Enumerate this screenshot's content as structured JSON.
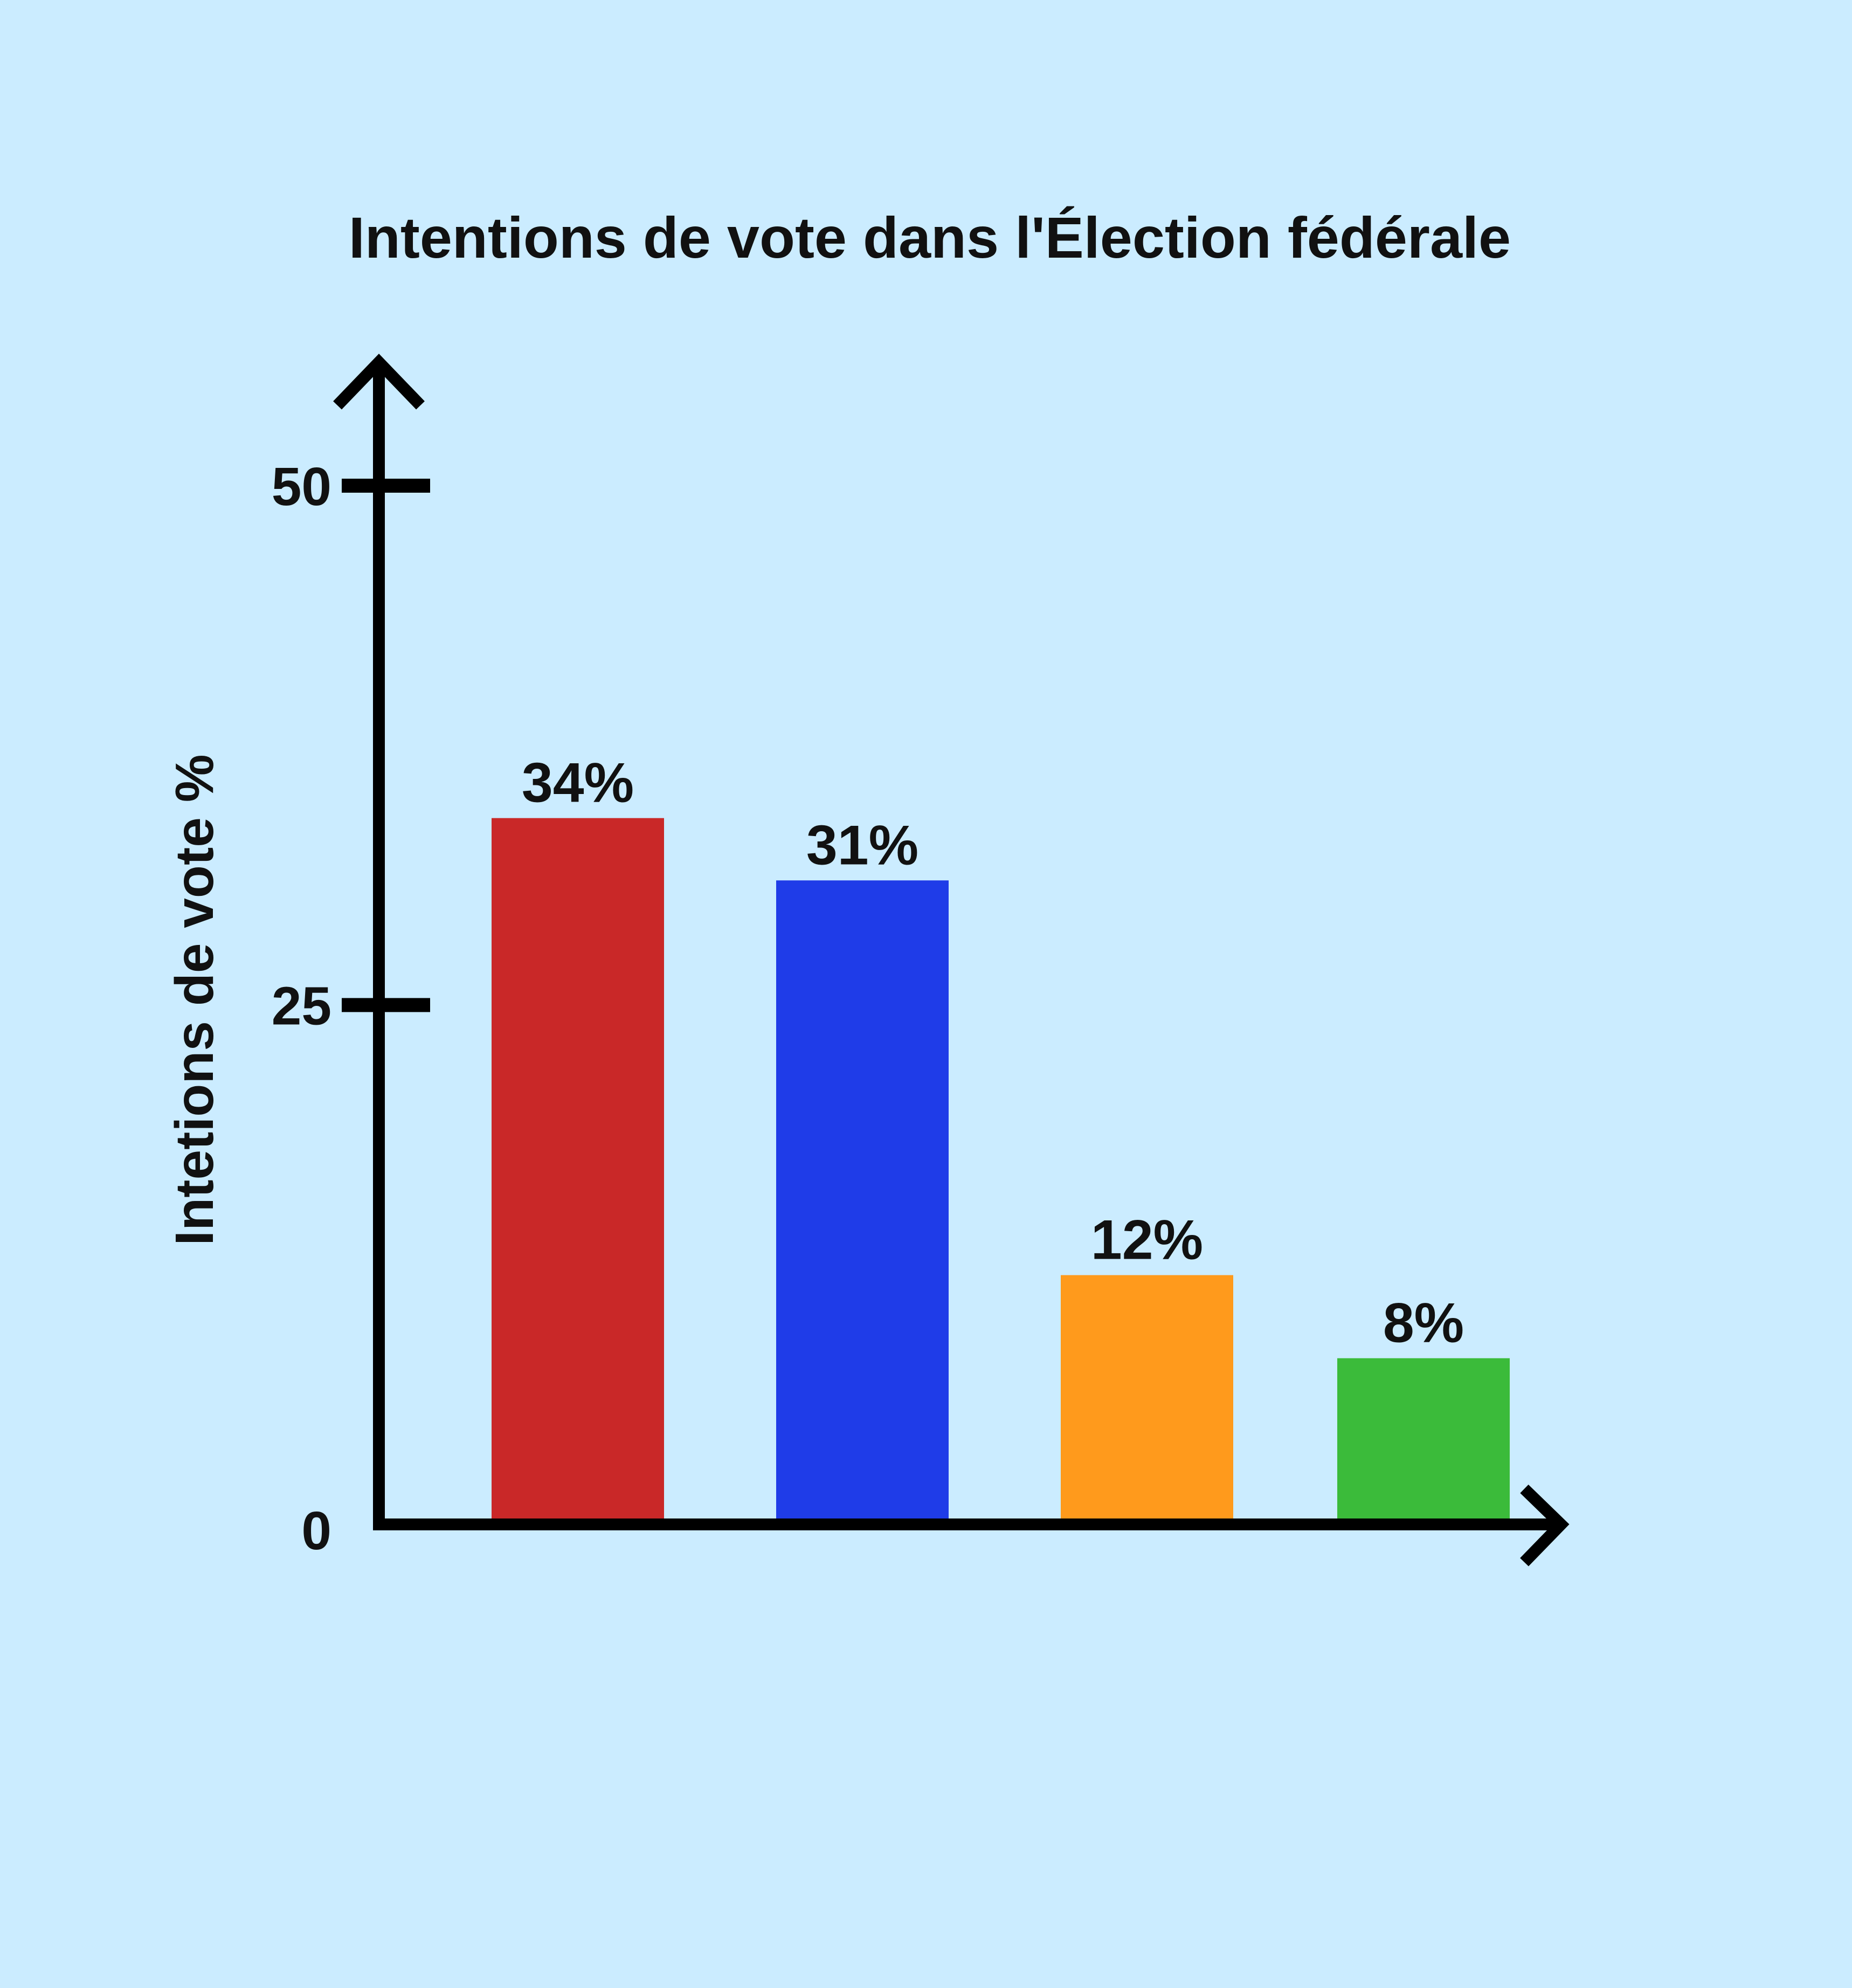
{
  "chart_data": {
    "type": "bar",
    "title": "Intentions de vote dans l'Élection fédérale",
    "ylabel": "Intetions de vote %",
    "xlabel": "",
    "ylim": [
      0,
      50
    ],
    "yticks": [
      0,
      25,
      50
    ],
    "ytick_labels": [
      "0",
      "25",
      "50"
    ],
    "values": [
      34,
      31,
      12,
      8
    ],
    "value_labels": [
      "34%",
      "31%",
      "12%",
      "8%"
    ],
    "colors": [
      "#c92828",
      "#1f3ce8",
      "#ff9a1c",
      "#3bbb3a"
    ],
    "grid": false,
    "legend": "none"
  }
}
